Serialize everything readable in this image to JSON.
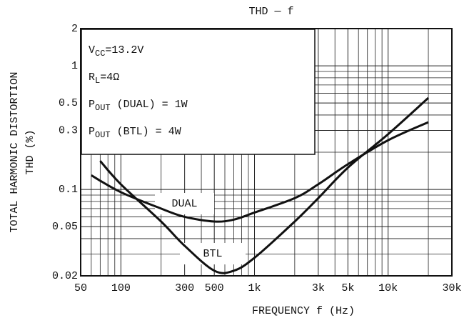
{
  "chart_data": {
    "type": "line",
    "title": "THD — f",
    "x_label": "FREQUENCY  f  (Hz)",
    "y_label": [
      "TOTAL HARMONIC DISTORTION",
      "THD (%)"
    ],
    "xscale": "log",
    "yscale": "log",
    "grid": true,
    "xlim": [
      50,
      30000
    ],
    "ylim": [
      0.02,
      2
    ],
    "xticks": [
      50,
      100,
      300,
      500,
      {
        "value": 1000,
        "label": "1k"
      },
      {
        "value": 3000,
        "label": "3k"
      },
      {
        "value": 5000,
        "label": "5k"
      },
      {
        "value": 10000,
        "label": "10k"
      },
      {
        "value": 30000,
        "label": "30k"
      }
    ],
    "yticks": [
      2,
      1,
      0.5,
      0.3,
      0.1,
      0.05,
      0.02
    ],
    "x_minor_grid": [
      60,
      70,
      80,
      90,
      200,
      400,
      600,
      700,
      800,
      900,
      2000,
      4000,
      6000,
      7000,
      8000,
      9000,
      20000
    ],
    "y_minor_grid": [
      0.03,
      0.04,
      0.06,
      0.07,
      0.08,
      0.09,
      0.2,
      0.4,
      0.6,
      0.7,
      0.8,
      0.9
    ],
    "annotations": [
      {
        "main": "V",
        "sub": "CC",
        "rest": "=13.2V"
      },
      {
        "main": "R",
        "sub": "L",
        "rest": "=4Ω"
      },
      {
        "main": "P",
        "sub": "OUT",
        "rest": " (DUAL) = 1W"
      },
      {
        "main": "P",
        "sub": "OUT",
        "rest": " (BTL) = 4W"
      }
    ],
    "series": [
      {
        "name": "DUAL",
        "color": "#111111",
        "x": [
          60,
          100,
          200,
          300,
          500,
          700,
          1000,
          2000,
          3000,
          5000,
          10000,
          20000
        ],
        "values": [
          0.13,
          0.095,
          0.07,
          0.06,
          0.055,
          0.057,
          0.065,
          0.085,
          0.11,
          0.16,
          0.25,
          0.35
        ]
      },
      {
        "name": "BTL",
        "color": "#111111",
        "x": [
          70,
          100,
          200,
          300,
          500,
          700,
          1000,
          2000,
          3000,
          5000,
          10000,
          20000
        ],
        "values": [
          0.17,
          0.11,
          0.055,
          0.035,
          0.022,
          0.022,
          0.028,
          0.055,
          0.085,
          0.15,
          0.28,
          0.55
        ]
      }
    ]
  }
}
